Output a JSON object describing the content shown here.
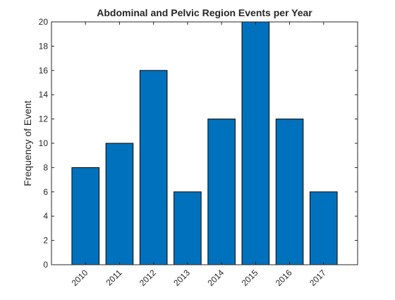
{
  "chart_data": {
    "type": "bar",
    "title": "Abdominal and Pelvic Region Events per Year",
    "xlabel": "",
    "ylabel": "Frequency of Event",
    "categories": [
      "2010",
      "2011",
      "2012",
      "2013",
      "2014",
      "2015",
      "2016",
      "2017"
    ],
    "values": [
      8,
      10,
      16,
      6,
      12,
      20,
      12,
      6
    ],
    "ylim": [
      0,
      20
    ],
    "yticks": [
      0,
      2,
      4,
      6,
      8,
      10,
      12,
      14,
      16,
      18,
      20
    ],
    "grid": false,
    "bar_color": "#0072BD",
    "bar_edge_color": "#000000"
  }
}
